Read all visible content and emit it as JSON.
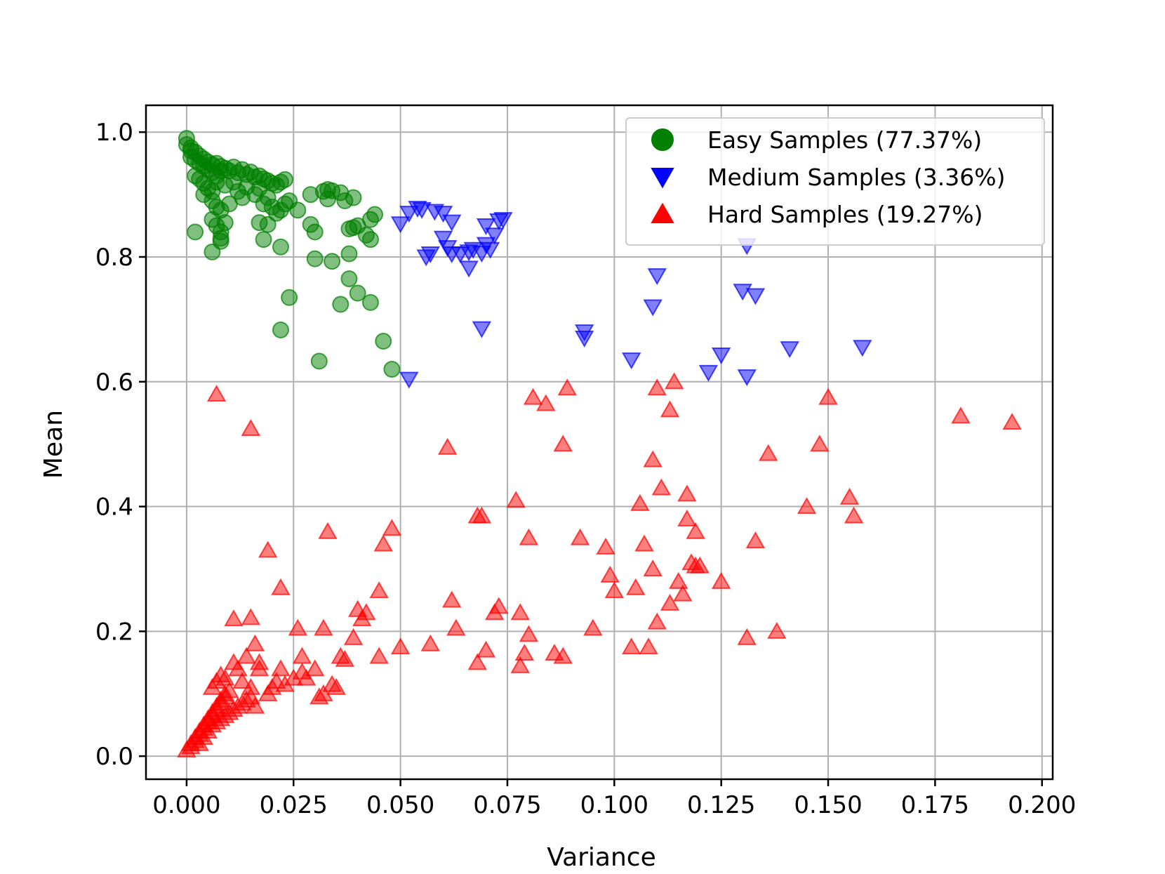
{
  "chart_data": {
    "type": "scatter",
    "title": "",
    "xlabel": "Variance",
    "ylabel": "Mean",
    "xlim": [
      -0.0095,
      0.2025
    ],
    "ylim": [
      -0.037,
      1.043
    ],
    "grid": true,
    "xticks": [
      0.0,
      0.025,
      0.05,
      0.075,
      0.1,
      0.125,
      0.15,
      0.175,
      0.2
    ],
    "xtick_labels": [
      "0.000",
      "0.025",
      "0.050",
      "0.075",
      "0.100",
      "0.125",
      "0.150",
      "0.175",
      "0.200"
    ],
    "yticks": [
      0.0,
      0.2,
      0.4,
      0.6,
      0.8,
      1.0
    ],
    "ytick_labels": [
      "0.0",
      "0.2",
      "0.4",
      "0.6",
      "0.8",
      "1.0"
    ],
    "legend_position": "top-right",
    "series": [
      {
        "name": "Easy Samples (77.37%)",
        "marker": "circle",
        "color": "#008000",
        "points": [
          [
            0.0,
            0.99
          ],
          [
            0.0,
            0.98
          ],
          [
            0.001,
            0.975
          ],
          [
            0.001,
            0.97
          ],
          [
            0.002,
            0.968
          ],
          [
            0.001,
            0.96
          ],
          [
            0.002,
            0.955
          ],
          [
            0.003,
            0.962
          ],
          [
            0.003,
            0.95
          ],
          [
            0.004,
            0.957
          ],
          [
            0.004,
            0.945
          ],
          [
            0.005,
            0.952
          ],
          [
            0.005,
            0.94
          ],
          [
            0.006,
            0.948
          ],
          [
            0.006,
            0.935
          ],
          [
            0.007,
            0.95
          ],
          [
            0.007,
            0.93
          ],
          [
            0.008,
            0.945
          ],
          [
            0.008,
            0.938
          ],
          [
            0.009,
            0.942
          ],
          [
            0.01,
            0.938
          ],
          [
            0.011,
            0.944
          ],
          [
            0.012,
            0.935
          ],
          [
            0.013,
            0.94
          ],
          [
            0.014,
            0.932
          ],
          [
            0.015,
            0.936
          ],
          [
            0.016,
            0.928
          ],
          [
            0.017,
            0.93
          ],
          [
            0.018,
            0.925
          ],
          [
            0.019,
            0.922
          ],
          [
            0.02,
            0.918
          ],
          [
            0.021,
            0.915
          ],
          [
            0.022,
            0.92
          ],
          [
            0.023,
            0.924
          ],
          [
            0.002,
            0.93
          ],
          [
            0.003,
            0.925
          ],
          [
            0.004,
            0.918
          ],
          [
            0.005,
            0.91
          ],
          [
            0.006,
            0.905
          ],
          [
            0.007,
            0.92
          ],
          [
            0.009,
            0.915
          ],
          [
            0.011,
            0.92
          ],
          [
            0.012,
            0.905
          ],
          [
            0.014,
            0.912
          ],
          [
            0.016,
            0.9
          ],
          [
            0.017,
            0.91
          ],
          [
            0.019,
            0.895
          ],
          [
            0.004,
            0.9
          ],
          [
            0.006,
            0.89
          ],
          [
            0.007,
            0.88
          ],
          [
            0.008,
            0.875
          ],
          [
            0.01,
            0.885
          ],
          [
            0.013,
            0.895
          ],
          [
            0.018,
            0.885
          ],
          [
            0.02,
            0.88
          ],
          [
            0.021,
            0.87
          ],
          [
            0.022,
            0.875
          ],
          [
            0.023,
            0.885
          ],
          [
            0.024,
            0.89
          ],
          [
            0.026,
            0.875
          ],
          [
            0.006,
            0.86
          ],
          [
            0.007,
            0.85
          ],
          [
            0.008,
            0.84
          ],
          [
            0.009,
            0.855
          ],
          [
            0.017,
            0.855
          ],
          [
            0.019,
            0.852
          ],
          [
            0.029,
            0.9
          ],
          [
            0.032,
            0.905
          ],
          [
            0.033,
            0.908
          ],
          [
            0.034,
            0.906
          ],
          [
            0.036,
            0.903
          ],
          [
            0.037,
            0.89
          ],
          [
            0.039,
            0.895
          ],
          [
            0.033,
            0.893
          ],
          [
            0.002,
            0.84
          ],
          [
            0.008,
            0.83
          ],
          [
            0.008,
            0.825
          ],
          [
            0.006,
            0.808
          ],
          [
            0.018,
            0.828
          ],
          [
            0.022,
            0.816
          ],
          [
            0.029,
            0.852
          ],
          [
            0.03,
            0.84
          ],
          [
            0.03,
            0.797
          ],
          [
            0.034,
            0.793
          ],
          [
            0.038,
            0.845
          ],
          [
            0.039,
            0.847
          ],
          [
            0.038,
            0.805
          ],
          [
            0.04,
            0.85
          ],
          [
            0.042,
            0.835
          ],
          [
            0.043,
            0.86
          ],
          [
            0.044,
            0.868
          ],
          [
            0.043,
            0.828
          ],
          [
            0.038,
            0.765
          ],
          [
            0.04,
            0.742
          ],
          [
            0.036,
            0.724
          ],
          [
            0.043,
            0.727
          ],
          [
            0.024,
            0.735
          ],
          [
            0.022,
            0.683
          ],
          [
            0.046,
            0.665
          ],
          [
            0.048,
            0.62
          ],
          [
            0.031,
            0.633
          ]
        ]
      },
      {
        "name": "Medium Samples (3.36%)",
        "marker": "triangle_down",
        "color": "#0000ff",
        "points": [
          [
            0.05,
            0.853
          ],
          [
            0.052,
            0.87
          ],
          [
            0.054,
            0.878
          ],
          [
            0.055,
            0.876
          ],
          [
            0.058,
            0.873
          ],
          [
            0.06,
            0.87
          ],
          [
            0.062,
            0.856
          ],
          [
            0.06,
            0.83
          ],
          [
            0.061,
            0.815
          ],
          [
            0.062,
            0.805
          ],
          [
            0.056,
            0.8
          ],
          [
            0.057,
            0.805
          ],
          [
            0.064,
            0.805
          ],
          [
            0.066,
            0.808
          ],
          [
            0.066,
            0.782
          ],
          [
            0.067,
            0.812
          ],
          [
            0.069,
            0.806
          ],
          [
            0.07,
            0.85
          ],
          [
            0.07,
            0.82
          ],
          [
            0.071,
            0.812
          ],
          [
            0.072,
            0.835
          ],
          [
            0.073,
            0.858
          ],
          [
            0.074,
            0.86
          ],
          [
            0.069,
            0.685
          ],
          [
            0.052,
            0.604
          ],
          [
            0.093,
            0.68
          ],
          [
            0.093,
            0.67
          ],
          [
            0.104,
            0.635
          ],
          [
            0.109,
            0.72
          ],
          [
            0.11,
            0.77
          ],
          [
            0.122,
            0.615
          ],
          [
            0.125,
            0.643
          ],
          [
            0.13,
            0.745
          ],
          [
            0.131,
            0.608
          ],
          [
            0.131,
            0.818
          ],
          [
            0.133,
            0.738
          ],
          [
            0.141,
            0.653
          ],
          [
            0.158,
            0.655
          ]
        ]
      },
      {
        "name": "Hard Samples (19.27%)",
        "marker": "triangle_up",
        "color": "#ff0000",
        "points": [
          [
            0.0,
            0.01
          ],
          [
            0.001,
            0.015
          ],
          [
            0.001,
            0.02
          ],
          [
            0.002,
            0.025
          ],
          [
            0.002,
            0.03
          ],
          [
            0.003,
            0.035
          ],
          [
            0.003,
            0.04
          ],
          [
            0.004,
            0.045
          ],
          [
            0.004,
            0.05
          ],
          [
            0.005,
            0.055
          ],
          [
            0.005,
            0.06
          ],
          [
            0.006,
            0.065
          ],
          [
            0.006,
            0.07
          ],
          [
            0.007,
            0.075
          ],
          [
            0.007,
            0.08
          ],
          [
            0.008,
            0.085
          ],
          [
            0.008,
            0.09
          ],
          [
            0.009,
            0.095
          ],
          [
            0.009,
            0.1
          ],
          [
            0.01,
            0.105
          ],
          [
            0.003,
            0.02
          ],
          [
            0.004,
            0.03
          ],
          [
            0.005,
            0.04
          ],
          [
            0.006,
            0.05
          ],
          [
            0.007,
            0.055
          ],
          [
            0.008,
            0.06
          ],
          [
            0.009,
            0.065
          ],
          [
            0.01,
            0.07
          ],
          [
            0.011,
            0.075
          ],
          [
            0.012,
            0.08
          ],
          [
            0.013,
            0.085
          ],
          [
            0.014,
            0.09
          ],
          [
            0.015,
            0.095
          ],
          [
            0.016,
            0.08
          ],
          [
            0.006,
            0.11
          ],
          [
            0.007,
            0.12
          ],
          [
            0.008,
            0.13
          ],
          [
            0.009,
            0.125
          ],
          [
            0.011,
            0.15
          ],
          [
            0.012,
            0.14
          ],
          [
            0.013,
            0.12
          ],
          [
            0.014,
            0.16
          ],
          [
            0.015,
            0.11
          ],
          [
            0.016,
            0.18
          ],
          [
            0.017,
            0.15
          ],
          [
            0.017,
            0.14
          ],
          [
            0.019,
            0.1
          ],
          [
            0.02,
            0.11
          ],
          [
            0.021,
            0.12
          ],
          [
            0.022,
            0.14
          ],
          [
            0.023,
            0.115
          ],
          [
            0.025,
            0.125
          ],
          [
            0.026,
            0.205
          ],
          [
            0.027,
            0.16
          ],
          [
            0.027,
            0.135
          ],
          [
            0.028,
            0.125
          ],
          [
            0.03,
            0.14
          ],
          [
            0.031,
            0.095
          ],
          [
            0.032,
            0.1
          ],
          [
            0.034,
            0.115
          ],
          [
            0.035,
            0.11
          ],
          [
            0.036,
            0.16
          ],
          [
            0.037,
            0.155
          ],
          [
            0.039,
            0.19
          ],
          [
            0.04,
            0.235
          ],
          [
            0.041,
            0.22
          ],
          [
            0.042,
            0.23
          ],
          [
            0.045,
            0.16
          ],
          [
            0.045,
            0.265
          ],
          [
            0.046,
            0.34
          ],
          [
            0.048,
            0.365
          ],
          [
            0.05,
            0.175
          ],
          [
            0.011,
            0.22
          ],
          [
            0.015,
            0.222
          ],
          [
            0.019,
            0.33
          ],
          [
            0.022,
            0.27
          ],
          [
            0.007,
            0.58
          ],
          [
            0.015,
            0.525
          ],
          [
            0.033,
            0.36
          ],
          [
            0.032,
            0.205
          ],
          [
            0.057,
            0.18
          ],
          [
            0.061,
            0.495
          ],
          [
            0.062,
            0.25
          ],
          [
            0.063,
            0.205
          ],
          [
            0.068,
            0.15
          ],
          [
            0.068,
            0.385
          ],
          [
            0.069,
            0.385
          ],
          [
            0.07,
            0.17
          ],
          [
            0.072,
            0.23
          ],
          [
            0.073,
            0.24
          ],
          [
            0.077,
            0.41
          ],
          [
            0.078,
            0.23
          ],
          [
            0.078,
            0.145
          ],
          [
            0.079,
            0.165
          ],
          [
            0.08,
            0.195
          ],
          [
            0.08,
            0.35
          ],
          [
            0.081,
            0.575
          ],
          [
            0.084,
            0.565
          ],
          [
            0.086,
            0.165
          ],
          [
            0.088,
            0.5
          ],
          [
            0.088,
            0.16
          ],
          [
            0.089,
            0.59
          ],
          [
            0.092,
            0.35
          ],
          [
            0.095,
            0.205
          ],
          [
            0.098,
            0.335
          ],
          [
            0.099,
            0.29
          ],
          [
            0.1,
            0.265
          ],
          [
            0.104,
            0.175
          ],
          [
            0.105,
            0.27
          ],
          [
            0.106,
            0.405
          ],
          [
            0.107,
            0.34
          ],
          [
            0.108,
            0.175
          ],
          [
            0.109,
            0.475
          ],
          [
            0.109,
            0.3
          ],
          [
            0.11,
            0.215
          ],
          [
            0.11,
            0.59
          ],
          [
            0.111,
            0.43
          ],
          [
            0.113,
            0.555
          ],
          [
            0.113,
            0.245
          ],
          [
            0.114,
            0.6
          ],
          [
            0.115,
            0.28
          ],
          [
            0.116,
            0.26
          ],
          [
            0.117,
            0.42
          ],
          [
            0.117,
            0.38
          ],
          [
            0.118,
            0.31
          ],
          [
            0.119,
            0.36
          ],
          [
            0.119,
            0.305
          ],
          [
            0.12,
            0.305
          ],
          [
            0.125,
            0.28
          ],
          [
            0.131,
            0.19
          ],
          [
            0.133,
            0.345
          ],
          [
            0.136,
            0.485
          ],
          [
            0.138,
            0.2
          ],
          [
            0.145,
            0.4
          ],
          [
            0.148,
            0.5
          ],
          [
            0.15,
            0.575
          ],
          [
            0.155,
            0.415
          ],
          [
            0.156,
            0.385
          ],
          [
            0.181,
            0.545
          ],
          [
            0.193,
            0.535
          ]
        ]
      }
    ]
  }
}
